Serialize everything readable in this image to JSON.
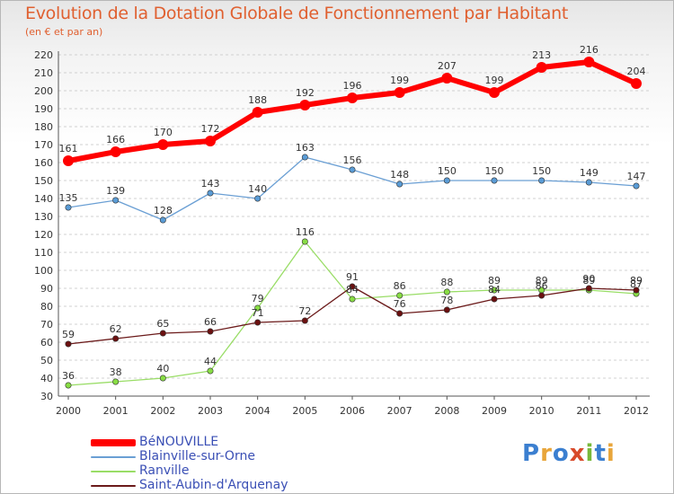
{
  "chart_data": {
    "type": "line",
    "title": "Evolution de la Dotation Globale de Fonctionnement par Habitant",
    "subtitle": "(en € et par an)",
    "xlabel": "",
    "ylabel": "",
    "categories": [
      "2000",
      "2001",
      "2002",
      "2003",
      "2004",
      "2005",
      "2006",
      "2007",
      "2008",
      "2009",
      "2010",
      "2011",
      "2012"
    ],
    "ylim": [
      30,
      220
    ],
    "ytick_step": 10,
    "grid": "dashed-horizontal",
    "legend_position": "bottom-left",
    "series": [
      {
        "name": "BéNOUVILLE",
        "color": "#ff0000",
        "values": [
          161,
          166,
          170,
          172,
          188,
          192,
          196,
          199,
          207,
          199,
          213,
          216,
          204
        ],
        "labels": [
          "161",
          "166",
          "170",
          "172",
          "188",
          "192",
          "196",
          "199",
          "207",
          "199",
          "213",
          "216",
          "204"
        ]
      },
      {
        "name": "Blainville-sur-Orne",
        "color": "#6a9fd4",
        "values": [
          135,
          139,
          128,
          143,
          140,
          163,
          156,
          148,
          150,
          150,
          150,
          149,
          147
        ],
        "labels": [
          "135",
          "139",
          "128",
          "143",
          "140",
          "163",
          "156",
          "148",
          "150",
          "150",
          "150",
          "149",
          "147"
        ]
      },
      {
        "name": "Ranville",
        "color": "#99dd66",
        "values": [
          36,
          38,
          40,
          44,
          79,
          116,
          84,
          86,
          88,
          89,
          89,
          89,
          87
        ],
        "labels": [
          "36",
          "38",
          "40",
          "44",
          "79",
          "116",
          "84",
          "86",
          "88",
          "89",
          "89",
          "89",
          "87"
        ]
      },
      {
        "name": "Saint-Aubin-d'Arquenay",
        "color": "#6b1a1a",
        "values": [
          59,
          62,
          65,
          66,
          71,
          72,
          91,
          76,
          78,
          84,
          86,
          90,
          89
        ],
        "labels": [
          "59",
          "62",
          "65",
          "66",
          "71",
          "72",
          "91",
          "76",
          "78",
          "84",
          "86",
          "90",
          "89"
        ]
      }
    ]
  },
  "logo": {
    "letters": [
      "P",
      "r",
      "o",
      "x",
      "i",
      "t",
      "i"
    ],
    "colors": [
      "#3b7fd0",
      "#e8a53a",
      "#3b7fd0",
      "#d84a2a",
      "#78b83a",
      "#3b7fd0",
      "#e8a53a"
    ]
  }
}
